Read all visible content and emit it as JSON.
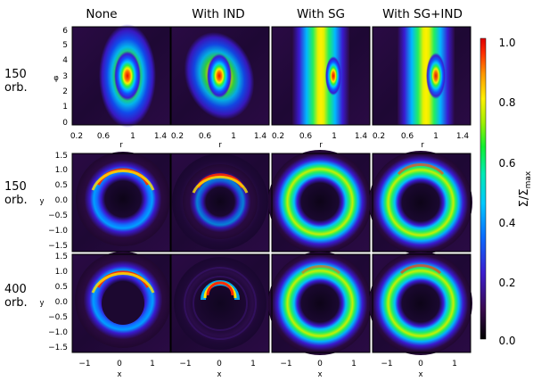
{
  "columns": [
    "None",
    "With IND",
    "With SG",
    "With SG+IND"
  ],
  "rows": [
    {
      "time": "150",
      "unit": "orb."
    },
    {
      "time": "150",
      "unit": "orb."
    },
    {
      "time": "400",
      "unit": "orb."
    }
  ],
  "top_axes": {
    "xlabel": "r",
    "ylabel": "φ",
    "xticks": [
      "0.2",
      "0.6",
      "1",
      "1.4"
    ],
    "yticks": [
      "0",
      "1",
      "2",
      "3",
      "4",
      "5",
      "6"
    ]
  },
  "disk_axes": {
    "xlabel": "x",
    "ylabel": "y",
    "xticks": [
      "−1",
      "0",
      "1"
    ],
    "yticks": [
      "1.5",
      "1.0",
      "0.5",
      "0.0",
      "−0.5",
      "−1.0",
      "−1.5"
    ]
  },
  "colorbar": {
    "label_main": "Σ/Σ",
    "label_sub": "max",
    "ticks": [
      "1.0",
      "0.8",
      "0.6",
      "0.4",
      "0.2",
      "0.0"
    ],
    "range": [
      0,
      1
    ]
  }
}
